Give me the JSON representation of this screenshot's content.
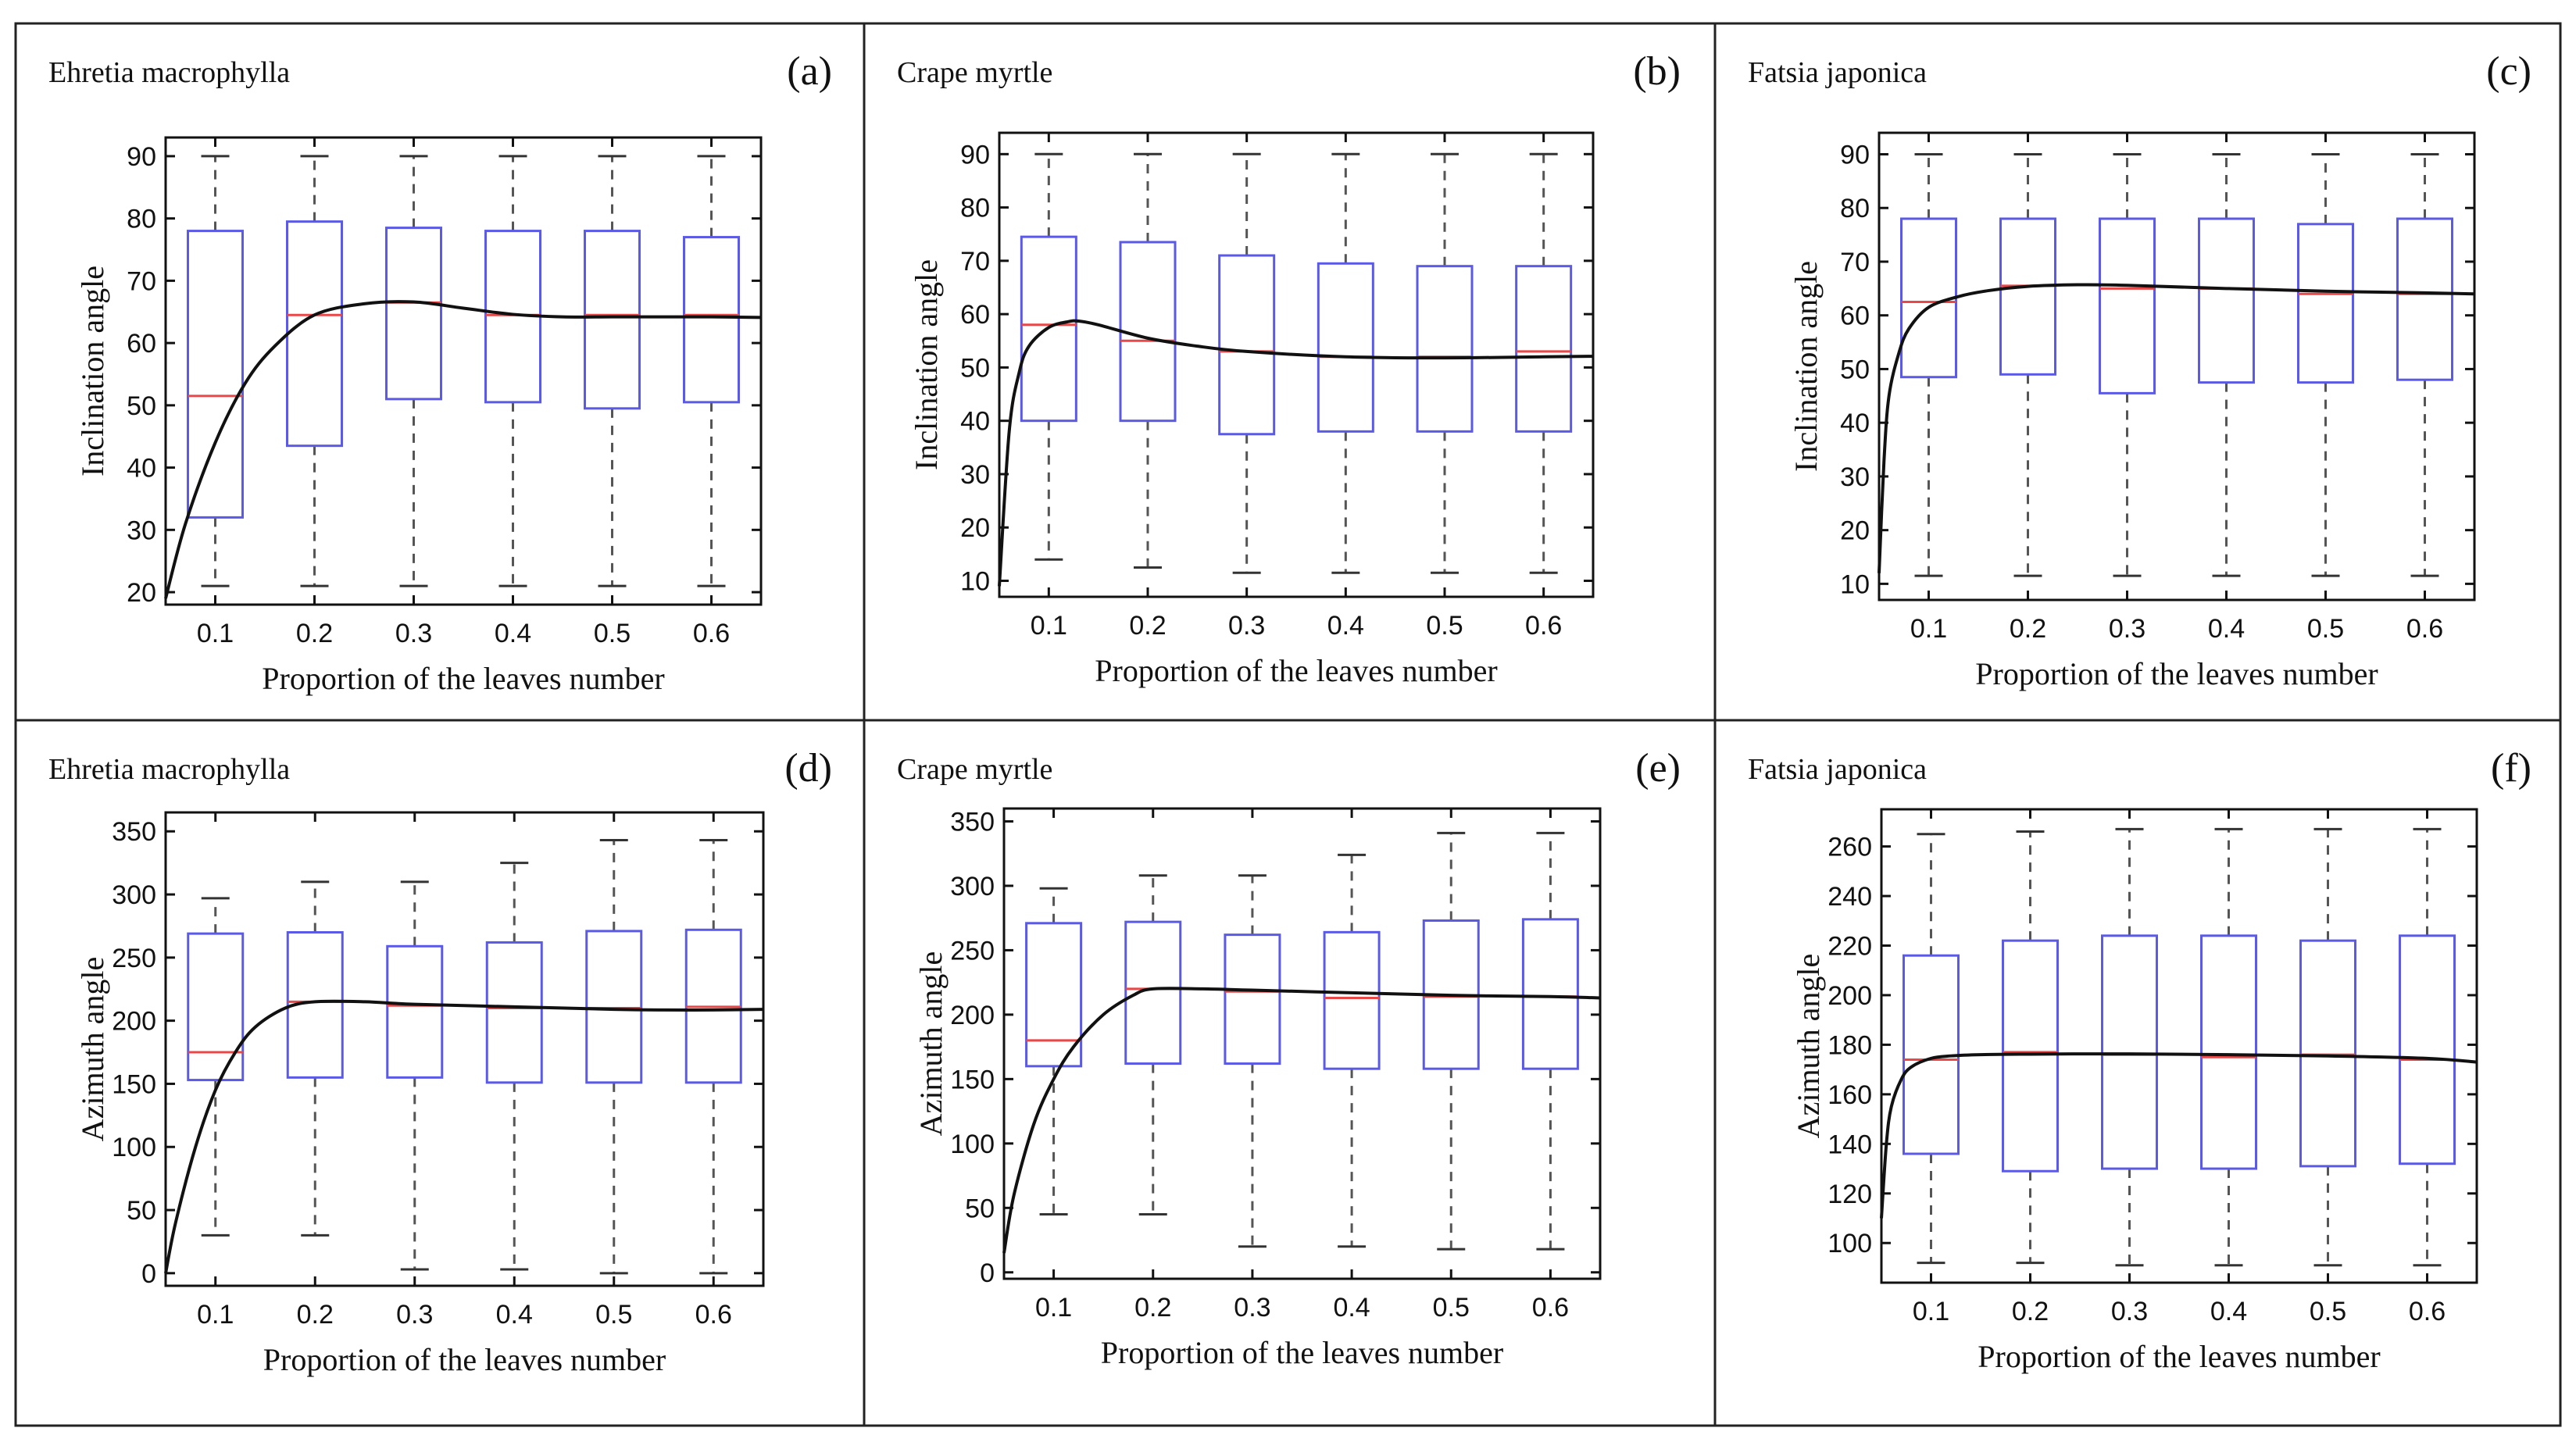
{
  "figure": {
    "x_axis_label": "Proportion of the leaves number",
    "x_tick_labels": [
      "0.1",
      "0.2",
      "0.3",
      "0.4",
      "0.5",
      "0.6"
    ]
  },
  "chart_data": [
    {
      "id": "a",
      "panel_label": "(a)",
      "species": "Ehretia macrophylla",
      "type": "box",
      "xlabel": "Proportion of the leaves number",
      "ylabel": "Inclination angle",
      "x": [
        0.1,
        0.2,
        0.3,
        0.4,
        0.5,
        0.6
      ],
      "xlim": [
        0.05,
        0.65
      ],
      "ylim": [
        18,
        93
      ],
      "yticks": [
        20,
        30,
        40,
        50,
        60,
        70,
        80,
        90
      ],
      "boxes": [
        {
          "x": 0.1,
          "whislo": 21,
          "q1": 32,
          "med": 51.5,
          "q3": 78,
          "whishi": 90
        },
        {
          "x": 0.2,
          "whislo": 21,
          "q1": 43.5,
          "med": 64.5,
          "q3": 79.5,
          "whishi": 90
        },
        {
          "x": 0.3,
          "whislo": 21,
          "q1": 51,
          "med": 66.5,
          "q3": 78.5,
          "whishi": 90
        },
        {
          "x": 0.4,
          "whislo": 21,
          "q1": 50.5,
          "med": 64.5,
          "q3": 78,
          "whishi": 90
        },
        {
          "x": 0.5,
          "whislo": 21,
          "q1": 49.5,
          "med": 64.5,
          "q3": 78,
          "whishi": 90
        },
        {
          "x": 0.6,
          "whislo": 21,
          "q1": 50.5,
          "med": 64.5,
          "q3": 77,
          "whishi": 90
        }
      ],
      "fit_curve": {
        "x": [
          0.05,
          0.07,
          0.1,
          0.13,
          0.16,
          0.2,
          0.25,
          0.3,
          0.35,
          0.4,
          0.45,
          0.5,
          0.55,
          0.6,
          0.65
        ],
        "y": [
          19,
          31,
          44,
          53.5,
          59.5,
          64.5,
          66.3,
          66.6,
          65.6,
          64.6,
          64.2,
          64.2,
          64.2,
          64.2,
          64.1
        ]
      }
    },
    {
      "id": "b",
      "panel_label": "(b)",
      "species": "Crape myrtle",
      "type": "box",
      "xlabel": "Proportion of the leaves number",
      "ylabel": "Inclination angle",
      "x": [
        0.1,
        0.2,
        0.3,
        0.4,
        0.5,
        0.6
      ],
      "xlim": [
        0.05,
        0.65
      ],
      "ylim": [
        7,
        94
      ],
      "yticks": [
        10,
        20,
        30,
        40,
        50,
        60,
        70,
        80,
        90
      ],
      "boxes": [
        {
          "x": 0.1,
          "whislo": 14,
          "q1": 40,
          "med": 58,
          "q3": 74.5,
          "whishi": 90
        },
        {
          "x": 0.2,
          "whislo": 12.5,
          "q1": 40,
          "med": 55,
          "q3": 73.5,
          "whishi": 90
        },
        {
          "x": 0.3,
          "whislo": 11.5,
          "q1": 37.5,
          "med": 53,
          "q3": 71,
          "whishi": 90
        },
        {
          "x": 0.4,
          "whislo": 11.5,
          "q1": 38,
          "med": 52,
          "q3": 69.5,
          "whishi": 90
        },
        {
          "x": 0.5,
          "whislo": 11.5,
          "q1": 38,
          "med": 52,
          "q3": 69,
          "whishi": 90
        },
        {
          "x": 0.6,
          "whislo": 11.5,
          "q1": 38,
          "med": 53,
          "q3": 69,
          "whishi": 90
        }
      ],
      "fit_curve": {
        "x": [
          0.05,
          0.06,
          0.07,
          0.08,
          0.1,
          0.12,
          0.13,
          0.15,
          0.2,
          0.25,
          0.3,
          0.4,
          0.5,
          0.6,
          0.65
        ],
        "y": [
          9,
          38,
          49,
          54,
          57.5,
          58.6,
          58.7,
          58,
          55.5,
          54,
          53,
          52,
          51.8,
          52,
          52.1
        ]
      }
    },
    {
      "id": "c",
      "panel_label": "(c)",
      "species": "Fatsia japonica",
      "type": "box",
      "xlabel": "Proportion of the leaves number",
      "ylabel": "Inclination angle",
      "x": [
        0.1,
        0.2,
        0.3,
        0.4,
        0.5,
        0.6
      ],
      "xlim": [
        0.05,
        0.65
      ],
      "ylim": [
        7,
        94
      ],
      "yticks": [
        10,
        20,
        30,
        40,
        50,
        60,
        70,
        80,
        90
      ],
      "boxes": [
        {
          "x": 0.1,
          "whislo": 11.5,
          "q1": 48.5,
          "med": 62.5,
          "q3": 78,
          "whishi": 90
        },
        {
          "x": 0.2,
          "whislo": 11.5,
          "q1": 49,
          "med": 65.5,
          "q3": 78,
          "whishi": 90
        },
        {
          "x": 0.3,
          "whislo": 11.5,
          "q1": 45.5,
          "med": 65,
          "q3": 78,
          "whishi": 90
        },
        {
          "x": 0.4,
          "whislo": 11.5,
          "q1": 47.5,
          "med": 65,
          "q3": 78,
          "whishi": 90
        },
        {
          "x": 0.5,
          "whislo": 11.5,
          "q1": 47.5,
          "med": 64,
          "q3": 77,
          "whishi": 90
        },
        {
          "x": 0.6,
          "whislo": 11.5,
          "q1": 48,
          "med": 64,
          "q3": 78,
          "whishi": 90
        }
      ],
      "fit_curve": {
        "x": [
          0.05,
          0.055,
          0.06,
          0.07,
          0.08,
          0.1,
          0.13,
          0.16,
          0.2,
          0.25,
          0.3,
          0.4,
          0.5,
          0.6,
          0.65
        ],
        "y": [
          12,
          33,
          45,
          53,
          57.5,
          61.5,
          63.5,
          64.6,
          65.4,
          65.7,
          65.6,
          65,
          64.5,
          64.2,
          64
        ]
      }
    },
    {
      "id": "d",
      "panel_label": "(d)",
      "species": "Ehretia macrophylla",
      "type": "box",
      "xlabel": "Proportion of the leaves number",
      "ylabel": "Azimuth angle",
      "x": [
        0.1,
        0.2,
        0.3,
        0.4,
        0.5,
        0.6
      ],
      "xlim": [
        0.05,
        0.65
      ],
      "ylim": [
        -10,
        365
      ],
      "yticks": [
        0,
        50,
        100,
        150,
        200,
        250,
        300,
        350
      ],
      "boxes": [
        {
          "x": 0.1,
          "whislo": 30,
          "q1": 153,
          "med": 175,
          "q3": 269,
          "whishi": 297
        },
        {
          "x": 0.2,
          "whislo": 30,
          "q1": 155,
          "med": 215,
          "q3": 270,
          "whishi": 310
        },
        {
          "x": 0.3,
          "whislo": 3,
          "q1": 155,
          "med": 212,
          "q3": 259,
          "whishi": 310
        },
        {
          "x": 0.4,
          "whislo": 3,
          "q1": 151,
          "med": 210,
          "q3": 262,
          "whishi": 325
        },
        {
          "x": 0.5,
          "whislo": 0,
          "q1": 151,
          "med": 210,
          "q3": 271,
          "whishi": 343
        },
        {
          "x": 0.6,
          "whislo": 0,
          "q1": 151,
          "med": 211,
          "q3": 272,
          "whishi": 343
        }
      ],
      "fit_curve": {
        "x": [
          0.05,
          0.06,
          0.08,
          0.1,
          0.12,
          0.14,
          0.17,
          0.2,
          0.25,
          0.3,
          0.4,
          0.5,
          0.55,
          0.6,
          0.65
        ],
        "y": [
          0,
          40,
          100,
          145,
          175,
          195,
          210,
          215,
          215,
          213,
          211,
          209,
          208.5,
          208.5,
          209
        ]
      }
    },
    {
      "id": "e",
      "panel_label": "(e)",
      "species": "Crape myrtle",
      "type": "box",
      "xlabel": "Proportion of the leaves number",
      "ylabel": "Azimuth angle",
      "x": [
        0.1,
        0.2,
        0.3,
        0.4,
        0.5,
        0.6
      ],
      "xlim": [
        0.05,
        0.65
      ],
      "ylim": [
        -5,
        360
      ],
      "yticks": [
        0,
        50,
        100,
        150,
        200,
        250,
        300,
        350
      ],
      "boxes": [
        {
          "x": 0.1,
          "whislo": 45,
          "q1": 160,
          "med": 180,
          "q3": 271,
          "whishi": 298
        },
        {
          "x": 0.2,
          "whislo": 45,
          "q1": 162,
          "med": 220,
          "q3": 272,
          "whishi": 308
        },
        {
          "x": 0.3,
          "whislo": 20,
          "q1": 162,
          "med": 218,
          "q3": 262,
          "whishi": 308
        },
        {
          "x": 0.4,
          "whislo": 20,
          "q1": 158,
          "med": 213,
          "q3": 264,
          "whishi": 324
        },
        {
          "x": 0.5,
          "whislo": 18,
          "q1": 158,
          "med": 214,
          "q3": 273,
          "whishi": 341
        },
        {
          "x": 0.6,
          "whislo": 18,
          "q1": 158,
          "med": 214,
          "q3": 274,
          "whishi": 341
        }
      ],
      "fit_curve": {
        "x": [
          0.05,
          0.06,
          0.08,
          0.1,
          0.12,
          0.15,
          0.18,
          0.2,
          0.25,
          0.3,
          0.4,
          0.5,
          0.6,
          0.65
        ],
        "y": [
          15,
          60,
          115,
          150,
          175,
          200,
          215,
          220,
          220,
          219,
          217,
          215,
          214,
          213
        ]
      }
    },
    {
      "id": "f",
      "panel_label": "(f)",
      "species": "Fatsia japonica",
      "type": "box",
      "xlabel": "Proportion of the leaves number",
      "ylabel": "Azimuth angle",
      "x": [
        0.1,
        0.2,
        0.3,
        0.4,
        0.5,
        0.6
      ],
      "xlim": [
        0.05,
        0.65
      ],
      "ylim": [
        84,
        275
      ],
      "yticks": [
        100,
        120,
        140,
        160,
        180,
        200,
        220,
        240,
        260
      ],
      "boxes": [
        {
          "x": 0.1,
          "whislo": 92,
          "q1": 136,
          "med": 174,
          "q3": 216,
          "whishi": 265
        },
        {
          "x": 0.2,
          "whislo": 92,
          "q1": 129,
          "med": 177,
          "q3": 222,
          "whishi": 266
        },
        {
          "x": 0.3,
          "whislo": 91,
          "q1": 130,
          "med": 176,
          "q3": 224,
          "whishi": 267
        },
        {
          "x": 0.4,
          "whislo": 91,
          "q1": 130,
          "med": 175,
          "q3": 224,
          "whishi": 267
        },
        {
          "x": 0.5,
          "whislo": 91,
          "q1": 131,
          "med": 176,
          "q3": 222,
          "whishi": 267
        },
        {
          "x": 0.6,
          "whislo": 91,
          "q1": 132,
          "med": 174,
          "q3": 224,
          "whishi": 267
        }
      ],
      "fit_curve": {
        "x": [
          0.05,
          0.055,
          0.06,
          0.07,
          0.08,
          0.1,
          0.12,
          0.15,
          0.2,
          0.25,
          0.3,
          0.4,
          0.5,
          0.6,
          0.65
        ],
        "y": [
          110,
          140,
          155,
          166,
          171,
          174.5,
          175.5,
          176,
          176.2,
          176.3,
          176.3,
          176,
          175.5,
          174.5,
          173
        ]
      }
    }
  ]
}
